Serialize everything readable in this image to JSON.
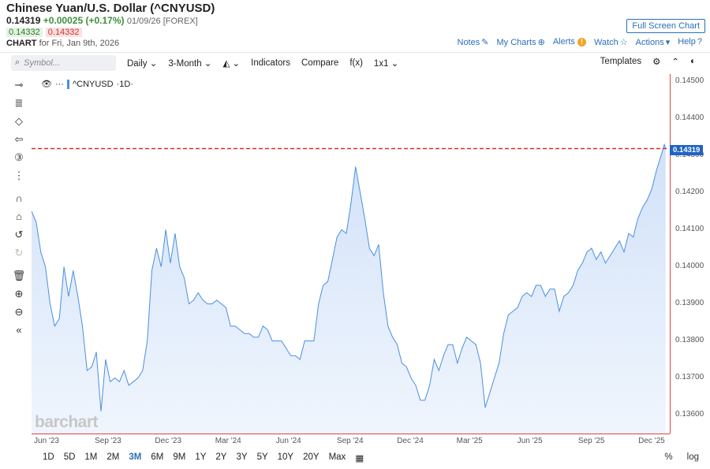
{
  "header": {
    "title": "Chinese Yuan/U.S. Dollar (^CNYUSD)",
    "last": "0.14319",
    "change": "+0.00025 (+0.17%)",
    "meta": "01/09/26 [FOREX]",
    "bid": "0.14332",
    "ask": "0.14332",
    "chart_for_label": "CHART",
    "chart_for_date": "for Fri, Jan 9th, 2026",
    "fullscreen_label": "Full Screen Chart",
    "links": {
      "notes": "Notes",
      "mycharts": "My Charts",
      "alerts": "Alerts",
      "watch": "Watch",
      "actions": "Actions",
      "help": "Help"
    }
  },
  "toolbar": {
    "search_placeholder": "Symbol...",
    "interval": "Daily",
    "range": "3-Month",
    "indicators": "Indicators",
    "compare": "Compare",
    "fx": "f(x)",
    "layout": "1x1",
    "templates": "Templates"
  },
  "sidebar_tools": [
    "crosshair-icon",
    "fib-icon",
    "shapes-icon",
    "arrow-icon",
    "number-icon",
    "pattern-icon",
    "magnet-icon",
    "lock-icon",
    "undo-icon",
    "redo-icon",
    "trash-icon",
    "zoom-in-icon",
    "zoom-out-icon",
    "collapse-icon"
  ],
  "legend": {
    "symbol": "^CNYUSD",
    "interval": "·1D·"
  },
  "watermark": "barchart",
  "last_price_label": "0.14319",
  "range_buttons": [
    "1D",
    "5D",
    "1M",
    "2M",
    "3M",
    "6M",
    "9M",
    "1Y",
    "2Y",
    "3Y",
    "5Y",
    "10Y",
    "20Y",
    "Max"
  ],
  "active_range": "3M",
  "scale_buttons": {
    "percent": "%",
    "log": "log"
  },
  "colors": {
    "line": "#4a8fe0",
    "fill": "#d6e6fa",
    "lastline": "#d92c2c",
    "accent": "#2a6fb7"
  },
  "chart_data": {
    "type": "area",
    "title": "Chinese Yuan/U.S. Dollar (^CNYUSD)",
    "ylim": [
      0.1355,
      0.1452
    ],
    "yticks": [
      "0.14500",
      "0.14400",
      "0.14300",
      "0.14200",
      "0.14100",
      "0.14000",
      "0.13900",
      "0.13800",
      "0.13700",
      "0.13600"
    ],
    "xticks": [
      "Jun '23",
      "Sep '23",
      "Dec '23",
      "Mar '24",
      "Jun '24",
      "Sep '24",
      "Dec '24",
      "Mar '25",
      "Jun '25",
      "Sep '25",
      "Dec '25"
    ],
    "xlim": [
      "2023-05-26",
      "2026-01-14"
    ],
    "last_value": 0.14319,
    "series": [
      {
        "values": [
          [
            "2023-05-26",
            0.1415
          ],
          [
            "2023-06-02",
            0.1412
          ],
          [
            "2023-06-09",
            0.1404
          ],
          [
            "2023-06-16",
            0.14
          ],
          [
            "2023-06-23",
            0.139
          ],
          [
            "2023-06-30",
            0.1384
          ],
          [
            "2023-07-07",
            0.1386
          ],
          [
            "2023-07-14",
            0.14
          ],
          [
            "2023-07-21",
            0.1392
          ],
          [
            "2023-07-28",
            0.1399
          ],
          [
            "2023-08-04",
            0.1392
          ],
          [
            "2023-08-11",
            0.1384
          ],
          [
            "2023-08-18",
            0.1372
          ],
          [
            "2023-08-25",
            0.1373
          ],
          [
            "2023-09-01",
            0.1377
          ],
          [
            "2023-09-08",
            0.1361
          ],
          [
            "2023-09-15",
            0.1375
          ],
          [
            "2023-09-22",
            0.1369
          ],
          [
            "2023-09-29",
            0.137
          ],
          [
            "2023-10-06",
            0.1369
          ],
          [
            "2023-10-13",
            0.1372
          ],
          [
            "2023-10-20",
            0.1368
          ],
          [
            "2023-10-27",
            0.1369
          ],
          [
            "2023-11-03",
            0.137
          ],
          [
            "2023-11-10",
            0.1372
          ],
          [
            "2023-11-17",
            0.138
          ],
          [
            "2023-11-24",
            0.1399
          ],
          [
            "2023-12-01",
            0.1405
          ],
          [
            "2023-12-08",
            0.14
          ],
          [
            "2023-12-15",
            0.141
          ],
          [
            "2023-12-22",
            0.1401
          ],
          [
            "2023-12-29",
            0.1409
          ],
          [
            "2024-01-05",
            0.14
          ],
          [
            "2024-01-12",
            0.1397
          ],
          [
            "2024-01-19",
            0.139
          ],
          [
            "2024-01-26",
            0.1391
          ],
          [
            "2024-02-02",
            0.1393
          ],
          [
            "2024-02-09",
            0.1391
          ],
          [
            "2024-02-16",
            0.139
          ],
          [
            "2024-02-23",
            0.139
          ],
          [
            "2024-03-01",
            0.1391
          ],
          [
            "2024-03-08",
            0.139
          ],
          [
            "2024-03-15",
            0.1389
          ],
          [
            "2024-03-22",
            0.1384
          ],
          [
            "2024-03-29",
            0.1384
          ],
          [
            "2024-04-05",
            0.1383
          ],
          [
            "2024-04-12",
            0.1382
          ],
          [
            "2024-04-19",
            0.1382
          ],
          [
            "2024-04-26",
            0.1381
          ],
          [
            "2024-05-03",
            0.1381
          ],
          [
            "2024-05-10",
            0.1384
          ],
          [
            "2024-05-17",
            0.1383
          ],
          [
            "2024-05-24",
            0.138
          ],
          [
            "2024-05-31",
            0.138
          ],
          [
            "2024-06-07",
            0.138
          ],
          [
            "2024-06-14",
            0.1378
          ],
          [
            "2024-06-21",
            0.1376
          ],
          [
            "2024-06-28",
            0.1376
          ],
          [
            "2024-07-05",
            0.1375
          ],
          [
            "2024-07-12",
            0.138
          ],
          [
            "2024-07-19",
            0.138
          ],
          [
            "2024-07-26",
            0.138
          ],
          [
            "2024-08-02",
            0.139
          ],
          [
            "2024-08-09",
            0.1395
          ],
          [
            "2024-08-16",
            0.1396
          ],
          [
            "2024-08-23",
            0.1402
          ],
          [
            "2024-08-30",
            0.1408
          ],
          [
            "2024-09-06",
            0.141
          ],
          [
            "2024-09-13",
            0.1409
          ],
          [
            "2024-09-20",
            0.1417
          ],
          [
            "2024-09-27",
            0.1427
          ],
          [
            "2024-10-04",
            0.142
          ],
          [
            "2024-10-11",
            0.1413
          ],
          [
            "2024-10-18",
            0.1405
          ],
          [
            "2024-10-25",
            0.1403
          ],
          [
            "2024-11-01",
            0.1406
          ],
          [
            "2024-11-08",
            0.1393
          ],
          [
            "2024-11-15",
            0.1384
          ],
          [
            "2024-11-22",
            0.1381
          ],
          [
            "2024-11-29",
            0.1379
          ],
          [
            "2024-12-06",
            0.1374
          ],
          [
            "2024-12-13",
            0.1373
          ],
          [
            "2024-12-20",
            0.137
          ],
          [
            "2024-12-27",
            0.1368
          ],
          [
            "2025-01-03",
            0.1364
          ],
          [
            "2025-01-10",
            0.1364
          ],
          [
            "2025-01-17",
            0.1368
          ],
          [
            "2025-01-24",
            0.1375
          ],
          [
            "2025-01-31",
            0.1372
          ],
          [
            "2025-02-07",
            0.1376
          ],
          [
            "2025-02-14",
            0.1379
          ],
          [
            "2025-02-21",
            0.1379
          ],
          [
            "2025-02-28",
            0.1374
          ],
          [
            "2025-03-07",
            0.1378
          ],
          [
            "2025-03-14",
            0.1381
          ],
          [
            "2025-03-21",
            0.138
          ],
          [
            "2025-03-28",
            0.1379
          ],
          [
            "2025-04-04",
            0.1374
          ],
          [
            "2025-04-11",
            0.1362
          ],
          [
            "2025-04-18",
            0.1366
          ],
          [
            "2025-04-25",
            0.137
          ],
          [
            "2025-05-02",
            0.1374
          ],
          [
            "2025-05-09",
            0.1382
          ],
          [
            "2025-05-16",
            0.1387
          ],
          [
            "2025-05-23",
            0.1388
          ],
          [
            "2025-05-30",
            0.1389
          ],
          [
            "2025-06-06",
            0.1392
          ],
          [
            "2025-06-13",
            0.1393
          ],
          [
            "2025-06-20",
            0.1392
          ],
          [
            "2025-06-27",
            0.1395
          ],
          [
            "2025-07-04",
            0.1395
          ],
          [
            "2025-07-11",
            0.1392
          ],
          [
            "2025-07-18",
            0.1394
          ],
          [
            "2025-07-25",
            0.1394
          ],
          [
            "2025-08-01",
            0.1388
          ],
          [
            "2025-08-08",
            0.1392
          ],
          [
            "2025-08-15",
            0.1393
          ],
          [
            "2025-08-22",
            0.1395
          ],
          [
            "2025-08-29",
            0.1399
          ],
          [
            "2025-09-05",
            0.1401
          ],
          [
            "2025-09-12",
            0.1404
          ],
          [
            "2025-09-19",
            0.1405
          ],
          [
            "2025-09-26",
            0.1402
          ],
          [
            "2025-10-03",
            0.1404
          ],
          [
            "2025-10-10",
            0.1401
          ],
          [
            "2025-10-17",
            0.1403
          ],
          [
            "2025-10-24",
            0.1405
          ],
          [
            "2025-10-31",
            0.1407
          ],
          [
            "2025-11-07",
            0.1404
          ],
          [
            "2025-11-14",
            0.1409
          ],
          [
            "2025-11-21",
            0.1408
          ],
          [
            "2025-11-28",
            0.1413
          ],
          [
            "2025-12-05",
            0.1416
          ],
          [
            "2025-12-12",
            0.1418
          ],
          [
            "2025-12-19",
            0.1421
          ],
          [
            "2025-12-26",
            0.1426
          ],
          [
            "2026-01-02",
            0.143
          ],
          [
            "2026-01-07",
            0.1433
          ],
          [
            "2026-01-09",
            0.14319
          ]
        ]
      }
    ]
  }
}
